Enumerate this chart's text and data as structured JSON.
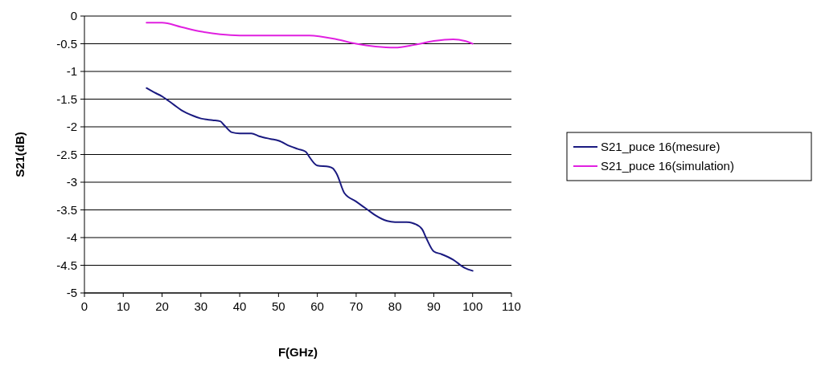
{
  "chart_data": {
    "type": "line",
    "xlabel": "F(GHz)",
    "ylabel": "S21(dB)",
    "xlim": [
      0,
      110
    ],
    "xticks": [
      0,
      10,
      20,
      30,
      40,
      50,
      60,
      70,
      80,
      90,
      100,
      110
    ],
    "ylim": [
      -5,
      0
    ],
    "yticks": [
      0,
      -0.5,
      -1,
      -1.5,
      -2,
      -2.5,
      -3,
      -3.5,
      -4,
      -4.5,
      -5
    ],
    "grid": "y",
    "legend": "right",
    "marker": "none",
    "series": [
      {
        "name": "S21_puce 16(mesure)",
        "color": "#1a1a80",
        "x": [
          16,
          18,
          20,
          23,
          25,
          28,
          30,
          33,
          35,
          36,
          38,
          40,
          43,
          45,
          48,
          50,
          53,
          55,
          57,
          58,
          60,
          63,
          64,
          65,
          67,
          70,
          73,
          75,
          78,
          80,
          83,
          85,
          87,
          88,
          90,
          92,
          95,
          98,
          100
        ],
        "values": [
          -1.3,
          -1.38,
          -1.45,
          -1.6,
          -1.7,
          -1.8,
          -1.85,
          -1.88,
          -1.9,
          -1.97,
          -2.1,
          -2.12,
          -2.12,
          -2.17,
          -2.22,
          -2.25,
          -2.35,
          -2.4,
          -2.45,
          -2.55,
          -2.7,
          -2.72,
          -2.75,
          -2.85,
          -3.2,
          -3.35,
          -3.5,
          -3.6,
          -3.7,
          -3.72,
          -3.72,
          -3.75,
          -3.85,
          -4.0,
          -4.25,
          -4.3,
          -4.4,
          -4.55,
          -4.6
        ]
      },
      {
        "name": "S21_puce 16(simulation)",
        "color": "#e020e0",
        "x": [
          16,
          20,
          25,
          30,
          35,
          40,
          50,
          58,
          65,
          70,
          75,
          80,
          85,
          90,
          95,
          98,
          100
        ],
        "values": [
          -0.12,
          -0.12,
          -0.2,
          -0.28,
          -0.33,
          -0.35,
          -0.35,
          -0.35,
          -0.42,
          -0.5,
          -0.55,
          -0.57,
          -0.52,
          -0.45,
          -0.42,
          -0.45,
          -0.5
        ]
      }
    ]
  }
}
